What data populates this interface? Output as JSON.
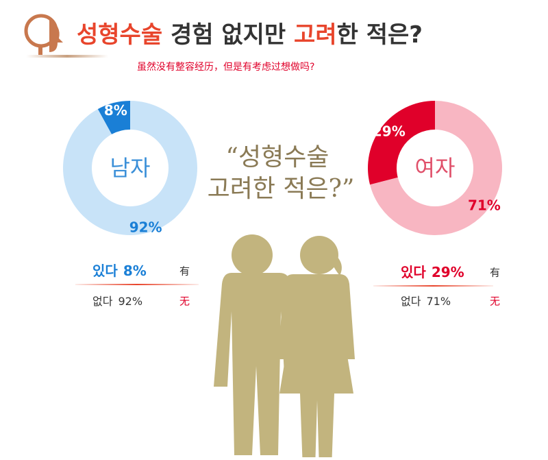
{
  "header": {
    "title_parts": [
      {
        "text": "성형수술",
        "color": "#e8452c"
      },
      {
        "text": " 경험 없지만 ",
        "color": "#333333"
      },
      {
        "text": "고려",
        "color": "#e8452c"
      },
      {
        "text": "한 적은?",
        "color": "#333333"
      }
    ],
    "subtitle": "虽然没有整容经历，但是有考虑过想做吗?",
    "quote": [
      "“성형수술",
      "고려한 적은?”"
    ]
  },
  "chart_data": [
    {
      "type": "donut",
      "center_label": "남자",
      "center_color": "#3a8fd8",
      "categories": [
        "있다",
        "없다"
      ],
      "category_translations": [
        "有",
        "无"
      ],
      "values": [
        8,
        92
      ],
      "value_labels": [
        "8%",
        "92%"
      ],
      "colors": [
        "#1a7fd6",
        "#c8e3f8"
      ],
      "label_colors": [
        "#ffffff",
        "#1a7fd6"
      ],
      "legend_colors": [
        "#1a7fd6",
        "#333333"
      ]
    },
    {
      "type": "donut",
      "center_label": "여자",
      "center_color": "#e0506a",
      "categories": [
        "있다",
        "없다"
      ],
      "category_translations": [
        "有",
        "无"
      ],
      "values": [
        29,
        71
      ],
      "value_labels": [
        "29%",
        "71%"
      ],
      "colors": [
        "#e0002a",
        "#f8b6c2"
      ],
      "label_colors": [
        "#ffffff",
        "#e0002a"
      ],
      "legend_colors": [
        "#e0002a",
        "#333333"
      ]
    }
  ]
}
